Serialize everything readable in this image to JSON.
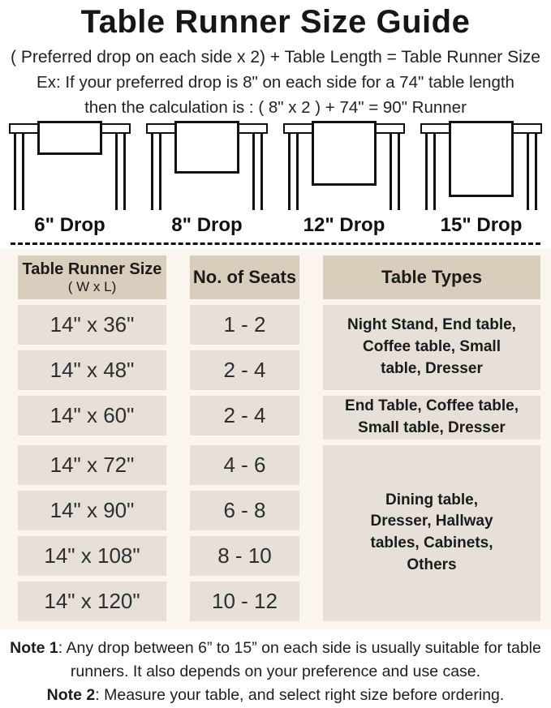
{
  "page": {
    "title": "Table Runner Size Guide",
    "formula": "( Preferred drop on each side x 2) + Table Length = Table Runner Size",
    "example": {
      "line1": "Ex: If your preferred drop is 8\" on each side for a 74\" table length",
      "line2": "then the calculation is : ( 8\" x 2 ) + 74\" = 90\" Runner"
    }
  },
  "figures": [
    {
      "label": "6\" Drop"
    },
    {
      "label": "8\" Drop"
    },
    {
      "label": "12\" Drop"
    },
    {
      "label": "15\" Drop"
    }
  ],
  "size_table": {
    "headers": {
      "runner_size_title": "Table Runner Size",
      "runner_size_sub": "( W x L)",
      "seats": "No. of Seats",
      "types": "Table Types"
    },
    "rows": [
      {
        "size": "14\" x 36\"",
        "seats": "1 - 2"
      },
      {
        "size": "14\" x 48\"",
        "seats": "2 - 4"
      },
      {
        "size": "14\" x 60\"",
        "seats": "2 - 4"
      },
      {
        "size": "14\" x 72\"",
        "seats": "4 - 6"
      },
      {
        "size": "14\" x 90\"",
        "seats": "6 - 8"
      },
      {
        "size": "14\" x 108\"",
        "seats": "8 - 10"
      },
      {
        "size": "14\" x 120\"",
        "seats": "10 - 12"
      }
    ],
    "type_groups": [
      {
        "lines": [
          "Night Stand, End table,",
          "Coffee table, Small",
          "table, Dresser"
        ]
      },
      {
        "lines": [
          "End Table, Coffee table,",
          "Small table, Dresser"
        ]
      },
      {
        "lines": [
          "Dining table,",
          "Dresser, Hallway",
          "tables, Cabinets,",
          "Others"
        ]
      }
    ]
  },
  "notes": [
    {
      "label": "Note 1",
      "text": ": Any drop between 6” to 15” on each side is usually suitable for table runners. It also depends on your preference and use case."
    },
    {
      "label": "Note 2",
      "text": ": Measure your table, and select right size before ordering."
    }
  ],
  "colors": {
    "header_bg": "#d9cdbb",
    "cell_bg": "#e6e0d8",
    "section_bg": "#faf5ef",
    "line_color": "#111111",
    "text": "#1d1d1d"
  }
}
